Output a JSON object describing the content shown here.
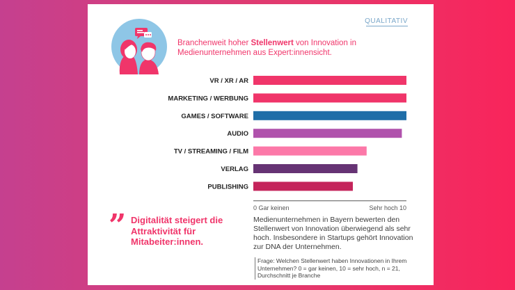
{
  "tag": "QUALITATIV",
  "headline": {
    "part1": "Branchenweit hoher ",
    "bold": "Stellenwert",
    "part2": " von Innovation in Medienunternehmen aus Expert:innensicht."
  },
  "chart_data": {
    "type": "bar",
    "orientation": "horizontal",
    "categories": [
      "VR / XR / AR",
      "MARKETING / WERBUNG",
      "GAMES / SOFTWARE",
      "AUDIO",
      "TV / STREAMING / FILM",
      "VERLAG",
      "PUBLISHING"
    ],
    "values": [
      10.0,
      10.0,
      10.0,
      9.7,
      7.4,
      6.8,
      6.5
    ],
    "colors": [
      "#f0356a",
      "#f0356a",
      "#1f6ea8",
      "#b052ac",
      "#fc78a8",
      "#663374",
      "#c4245b"
    ],
    "xlim": [
      0,
      10
    ],
    "x_ticks": [
      "0 Gar keinen",
      "Sehr hoch 10"
    ]
  },
  "quote": "Digitalität steigert die Attraktivität für Mitabeiter:innen.",
  "summary": "Medienunternehmen in Bayern bewerten den Stellenwert von Innovation überwiegend als sehr hoch. Insbesondere in Startups gehört Innovation zur DNA der Unternehmen.",
  "question": "Frage: Welchen Stellenwert haben Innovationen in Ihrem Unternehmen? 0 = gar keinen, 10 = sehr hoch, n = 21, Durchschnitt je Branche",
  "colors": {
    "accent": "#f0356a",
    "avatar_bg": "#8ec6e6"
  },
  "icons": [
    "speech-bubbles-icon",
    "woman-avatar-icon",
    "man-avatar-icon",
    "quote-mark-icon"
  ]
}
